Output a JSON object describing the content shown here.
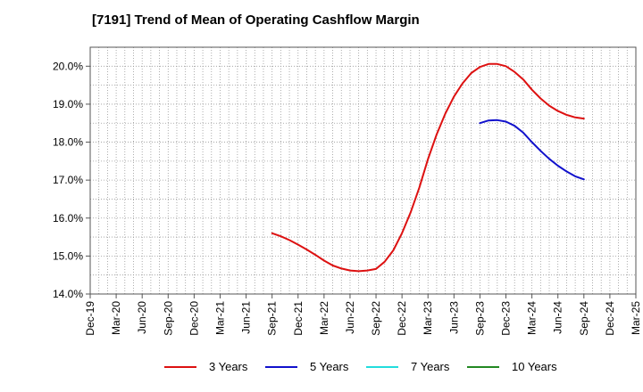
{
  "chart_data": {
    "type": "line",
    "title": "[7191]  Trend of Mean of Operating Cashflow Margin",
    "xlabel": "",
    "ylabel": "",
    "ylim": [
      14.0,
      20.5
    ],
    "yticks": [
      14.0,
      15.0,
      16.0,
      17.0,
      18.0,
      19.0,
      20.0
    ],
    "ytick_labels": [
      "14.0%",
      "15.0%",
      "16.0%",
      "17.0%",
      "18.0%",
      "19.0%",
      "20.0%"
    ],
    "xtick_labels": [
      "Dec-19",
      "Mar-20",
      "Jun-20",
      "Sep-20",
      "Dec-20",
      "Mar-21",
      "Jun-21",
      "Sep-21",
      "Dec-21",
      "Mar-22",
      "Jun-22",
      "Sep-22",
      "Dec-22",
      "Mar-23",
      "Jun-23",
      "Sep-23",
      "Dec-23",
      "Mar-24",
      "Jun-24",
      "Sep-24",
      "Dec-24",
      "Mar-25"
    ],
    "grid": true,
    "legend_position": "bottom",
    "series": [
      {
        "name": "3 Years",
        "color": "#dd1111",
        "x": [
          "Sep-21",
          "Oct-21",
          "Nov-21",
          "Dec-21",
          "Jan-22",
          "Feb-22",
          "Mar-22",
          "Apr-22",
          "May-22",
          "Jun-22",
          "Jul-22",
          "Aug-22",
          "Sep-22",
          "Oct-22",
          "Nov-22",
          "Dec-22",
          "Jan-23",
          "Feb-23",
          "Mar-23",
          "Apr-23",
          "May-23",
          "Jun-23",
          "Jul-23",
          "Aug-23",
          "Sep-23",
          "Oct-23",
          "Nov-23",
          "Dec-23",
          "Jan-24",
          "Feb-24",
          "Mar-24",
          "Apr-24",
          "May-24",
          "Jun-24",
          "Jul-24",
          "Aug-24",
          "Sep-24"
        ],
        "values": [
          15.6,
          15.52,
          15.42,
          15.3,
          15.17,
          15.03,
          14.88,
          14.75,
          14.67,
          14.62,
          14.6,
          14.62,
          14.66,
          14.85,
          15.15,
          15.6,
          16.15,
          16.8,
          17.55,
          18.2,
          18.75,
          19.2,
          19.55,
          19.82,
          19.98,
          20.06,
          20.06,
          20.0,
          19.85,
          19.65,
          19.38,
          19.15,
          18.96,
          18.82,
          18.72,
          18.65,
          18.62
        ]
      },
      {
        "name": "5 Years",
        "color": "#1111cc",
        "x": [
          "Sep-23",
          "Oct-23",
          "Nov-23",
          "Dec-23",
          "Jan-24",
          "Feb-24",
          "Mar-24",
          "Apr-24",
          "May-24",
          "Jun-24",
          "Jul-24",
          "Aug-24",
          "Sep-24"
        ],
        "values": [
          18.5,
          18.57,
          18.58,
          18.54,
          18.43,
          18.25,
          18.0,
          17.77,
          17.56,
          17.38,
          17.23,
          17.1,
          17.02
        ]
      },
      {
        "name": "7 Years",
        "color": "#22dddd",
        "x": [],
        "values": []
      },
      {
        "name": "10 Years",
        "color": "#228822",
        "x": [],
        "values": []
      }
    ]
  }
}
